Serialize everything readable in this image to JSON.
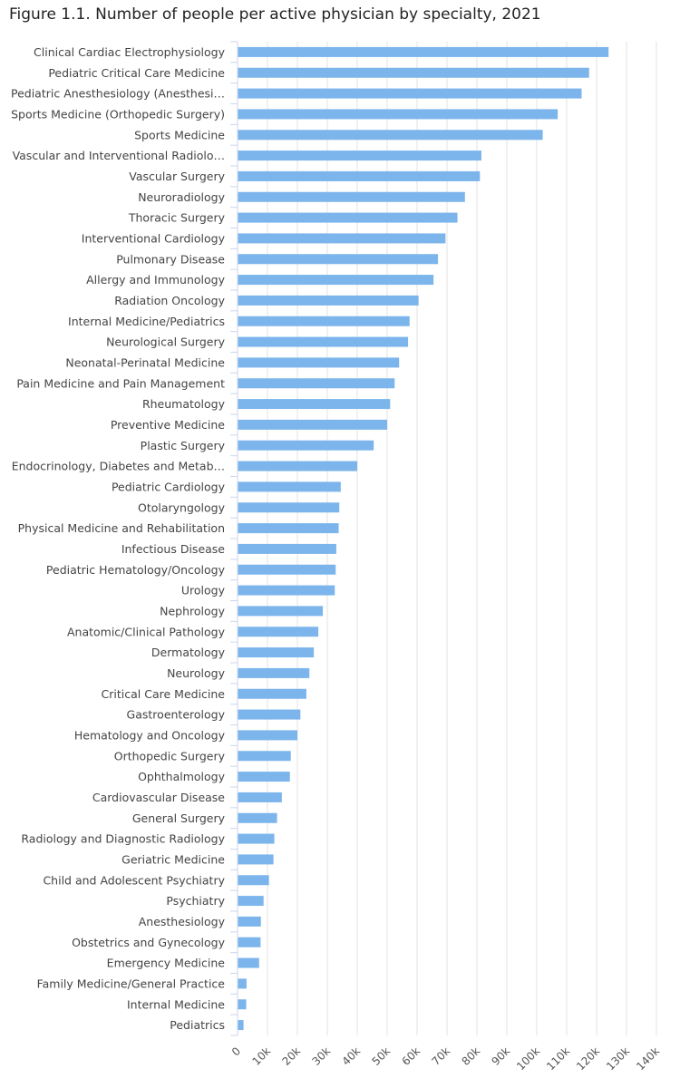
{
  "chart_data": {
    "type": "bar",
    "orientation": "horizontal",
    "title": "Figure 1.1. Number of people per active physician by specialty, 2021",
    "xlabel": "",
    "ylabel": "",
    "xlim": [
      0,
      140000
    ],
    "x_ticks": [
      0,
      10000,
      20000,
      30000,
      40000,
      50000,
      60000,
      70000,
      80000,
      90000,
      100000,
      110000,
      120000,
      130000,
      140000
    ],
    "x_tick_labels": [
      "0",
      "10k",
      "20k",
      "30k",
      "40k",
      "50k",
      "60k",
      "70k",
      "80k",
      "90k",
      "100k",
      "110k",
      "120k",
      "130k",
      "140k"
    ],
    "grid": true,
    "bar_color": "#7cb5ec",
    "categories": [
      "Clinical Cardiac Electrophysiology",
      "Pediatric Critical Care Medicine",
      "Pediatric Anesthesiology (Anesthesi…",
      "Sports Medicine (Orthopedic Surgery)",
      "Sports Medicine",
      "Vascular and Interventional Radiolo…",
      "Vascular Surgery",
      "Neuroradiology",
      "Thoracic Surgery",
      "Interventional Cardiology",
      "Pulmonary Disease",
      "Allergy and Immunology",
      "Radiation Oncology",
      "Internal Medicine/Pediatrics",
      "Neurological Surgery",
      "Neonatal-Perinatal Medicine",
      "Pain Medicine and Pain Management",
      "Rheumatology",
      "Preventive Medicine",
      "Plastic Surgery",
      "Endocrinology, Diabetes and Metab…",
      "Pediatric Cardiology",
      "Otolaryngology",
      "Physical Medicine and Rehabilitation",
      "Infectious Disease",
      "Pediatric Hematology/Oncology",
      "Urology",
      "Nephrology",
      "Anatomic/Clinical Pathology",
      "Dermatology",
      "Neurology",
      "Critical Care Medicine",
      "Gastroenterology",
      "Hematology and Oncology",
      "Orthopedic Surgery",
      "Ophthalmology",
      "Cardiovascular Disease",
      "General Surgery",
      "Radiology and Diagnostic Radiology",
      "Geriatric Medicine",
      "Child and Adolescent Psychiatry",
      "Psychiatry",
      "Anesthesiology",
      "Obstetrics and Gynecology",
      "Emergency Medicine",
      "Family Medicine/General Practice",
      "Internal Medicine",
      "Pediatrics"
    ],
    "values": [
      124000,
      117500,
      115000,
      107000,
      102000,
      81500,
      81000,
      76000,
      73500,
      69500,
      67000,
      65500,
      60500,
      57500,
      57000,
      54000,
      52500,
      51000,
      50000,
      45500,
      40000,
      34500,
      34000,
      33800,
      33000,
      32800,
      32500,
      28500,
      27000,
      25500,
      24000,
      23000,
      21000,
      20000,
      17800,
      17500,
      14800,
      13200,
      12300,
      12000,
      10500,
      8700,
      7800,
      7700,
      7200,
      3000,
      2900,
      2000
    ]
  }
}
